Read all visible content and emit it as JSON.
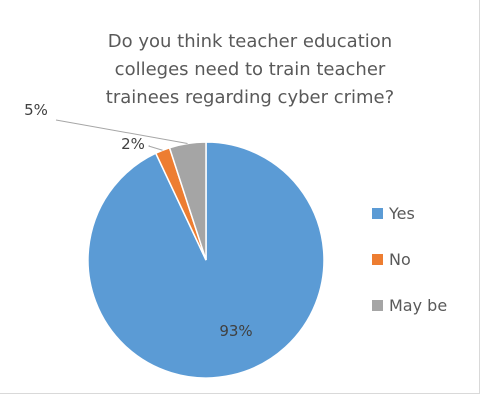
{
  "chart_data": {
    "type": "pie",
    "title_lines": [
      "Do you think teacher education",
      "colleges need to  train teacher",
      "trainees regarding cyber crime?"
    ],
    "slices": [
      {
        "name": "Yes",
        "value": 93,
        "label": "93%",
        "color": "#5b9bd5"
      },
      {
        "name": "No",
        "value": 2,
        "label": "2%",
        "color": "#ed7d31"
      },
      {
        "name": "May be",
        "value": 5,
        "label": "5%",
        "color": "#a5a5a5"
      }
    ],
    "legend_position": "right"
  }
}
